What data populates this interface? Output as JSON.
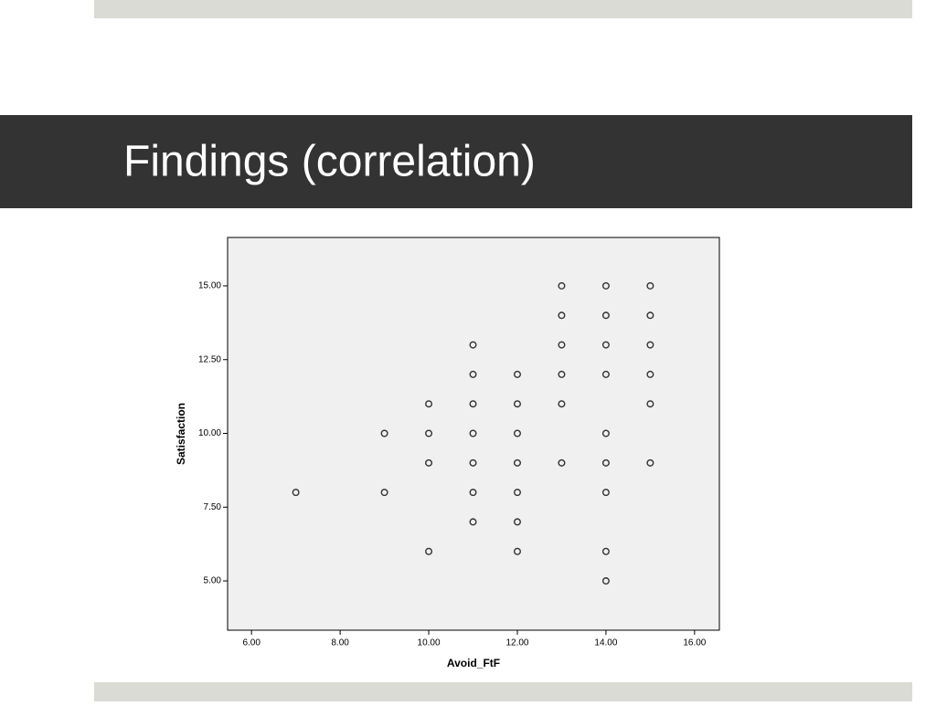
{
  "slide_title": "Findings (correlation)",
  "chart_data": {
    "type": "scatter",
    "xlabel": "Avoid_FtF",
    "ylabel": "Satisfaction",
    "x": [
      7,
      9,
      9,
      10,
      10,
      10,
      10,
      11,
      11,
      11,
      11,
      11,
      11,
      11,
      12,
      12,
      12,
      12,
      12,
      12,
      12,
      13,
      13,
      13,
      13,
      13,
      13,
      14,
      14,
      14,
      14,
      14,
      14,
      14,
      14,
      14,
      15,
      15,
      15,
      15,
      15,
      15
    ],
    "values": [
      8,
      10,
      8,
      11,
      10,
      9,
      6,
      13,
      12,
      11,
      10,
      9,
      8,
      7,
      12,
      11,
      10,
      9,
      8,
      7,
      6,
      15,
      14,
      13,
      12,
      11,
      9,
      15,
      14,
      13,
      12,
      10,
      9,
      8,
      6,
      5,
      15,
      14,
      13,
      12,
      11,
      9
    ],
    "color": "#333333",
    "xlim": [
      5.46,
      16.56
    ],
    "ylim": [
      3.33,
      16.64
    ],
    "xticks": [
      {
        "value": 6,
        "label": "6.00"
      },
      {
        "value": 8,
        "label": "8.00"
      },
      {
        "value": 10,
        "label": "10.00"
      },
      {
        "value": 12,
        "label": "12.00"
      },
      {
        "value": 14,
        "label": "14.00"
      },
      {
        "value": 16,
        "label": "16.00"
      }
    ],
    "yticks": [
      {
        "value": 5,
        "label": "5.00"
      },
      {
        "value": 7.5,
        "label": "7.50"
      },
      {
        "value": 10,
        "label": "10.00"
      },
      {
        "value": 12.5,
        "label": "12.50"
      },
      {
        "value": 15,
        "label": "15.00"
      }
    ]
  }
}
